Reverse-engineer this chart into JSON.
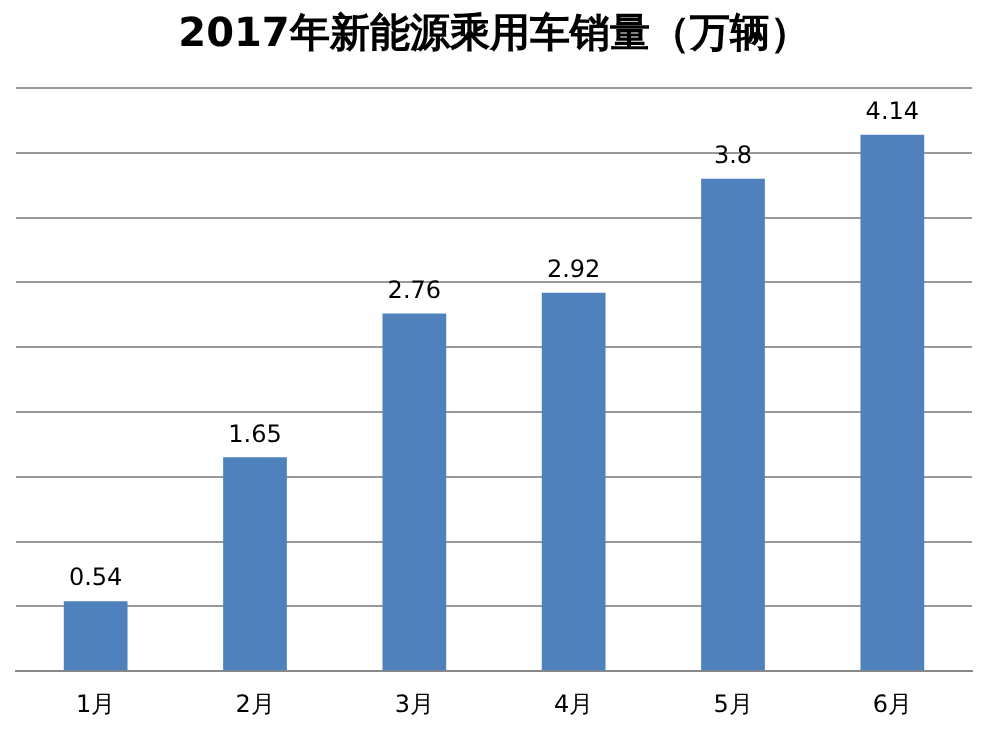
{
  "chart_data": {
    "type": "bar",
    "title": "2017年新能源乘用车销量（万辆）",
    "categories": [
      "1月",
      "2月",
      "3月",
      "4月",
      "5月",
      "6月"
    ],
    "values": [
      0.54,
      1.65,
      2.76,
      2.92,
      3.8,
      4.14
    ],
    "color": "#4f81bd",
    "ylim": [
      0,
      4.5
    ],
    "yticks": [
      {
        "value": 0,
        "label": null
      },
      {
        "value": 0.5,
        "label": null
      },
      {
        "value": 1,
        "label": null
      },
      {
        "value": 1.5,
        "label": null
      },
      {
        "value": 2,
        "label": null
      },
      {
        "value": 2.5,
        "label": null
      },
      {
        "value": 3,
        "label": null
      },
      {
        "value": 3.5,
        "label": null
      },
      {
        "value": 4,
        "label": null
      },
      {
        "value": 4.5,
        "label": null
      }
    ],
    "grid": "y",
    "legend": false,
    "data_labels": true
  }
}
